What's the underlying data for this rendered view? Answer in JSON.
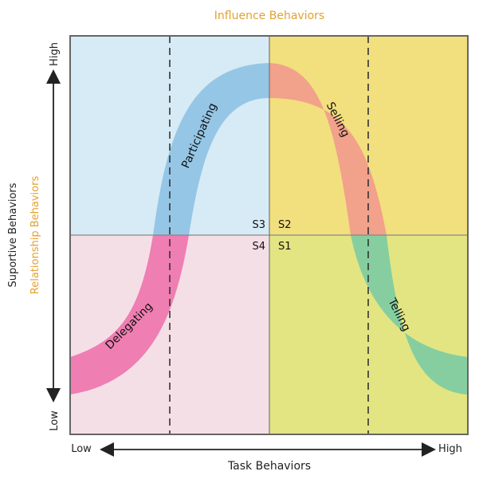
{
  "header": {
    "influence_label": "Influence Behaviors"
  },
  "axes": {
    "y_primary_label": "Suportive Behaviors",
    "y_secondary_label": "Relationship Behaviors",
    "y_high": "High",
    "y_low": "Low",
    "x_label": "Task Behaviors",
    "x_low": "Low",
    "x_high": "High"
  },
  "quadrants": {
    "s3": {
      "code": "S3",
      "color": "#d6ebf5"
    },
    "s2": {
      "code": "S2",
      "color": "#f2df7e"
    },
    "s4": {
      "code": "S4",
      "color": "#f5dfe7"
    },
    "s1": {
      "code": "S1",
      "color": "#e3e582"
    }
  },
  "styles": {
    "delegating": {
      "label": "Delegating",
      "color": "#ef7eb2"
    },
    "participating": {
      "label": "Participating",
      "color": "#95c6e6"
    },
    "selling": {
      "label": "Selling",
      "color": "#f2a18b"
    },
    "telling": {
      "label": "Telling",
      "color": "#86cea0"
    }
  },
  "colors": {
    "accent": "#e3a12e",
    "border": "#666666",
    "text": "#222222"
  }
}
